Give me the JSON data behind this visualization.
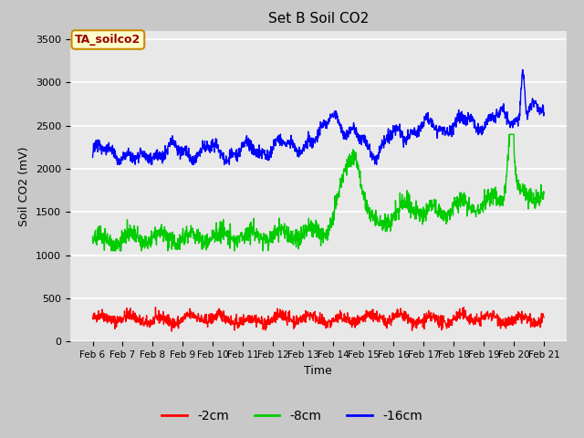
{
  "title": "Set B Soil CO2",
  "ylabel": "Soil CO2 (mV)",
  "xlabel": "Time",
  "annotation": "TA_soilco2",
  "legend_labels": [
    "-2cm",
    "-8cm",
    "-16cm"
  ],
  "legend_colors": [
    "#ff0000",
    "#00cc00",
    "#0000ff"
  ],
  "x_tick_labels": [
    "Feb 6",
    "Feb 7",
    "Feb 8",
    "Feb 9",
    "Feb 10",
    "Feb 11",
    "Feb 12",
    "Feb 13",
    "Feb 14",
    "Feb 15",
    "Feb 16",
    "Feb 17",
    "Feb 18",
    "Feb 19",
    "Feb 20",
    "Feb 21"
  ],
  "ylim": [
    0,
    3600
  ],
  "yticks": [
    0,
    500,
    1000,
    1500,
    2000,
    2500,
    3000,
    3500
  ],
  "fig_bg_color": "#c8c8c8",
  "plot_bg_color": "#e8e8e8",
  "grid_color": "#ffffff",
  "line_width": 1.0,
  "seed": 42,
  "n_points": 1500
}
